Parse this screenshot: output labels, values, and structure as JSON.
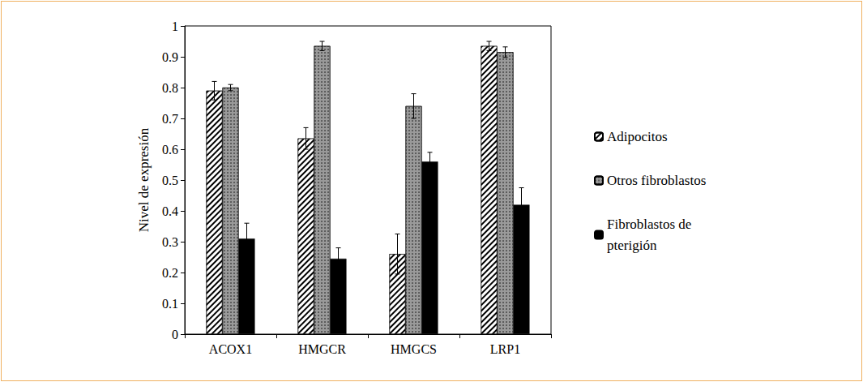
{
  "chart_data": {
    "type": "bar",
    "y_label": "Nivel de expresión",
    "categories": [
      "ACOX1",
      "HMGCR",
      "HMGCS",
      "LRP1"
    ],
    "series": [
      {
        "name": "Adipocitos",
        "color": "#ffffff",
        "values": [
          0.79,
          0.635,
          0.26,
          0.935
        ],
        "errors": [
          0.03,
          0.035,
          0.065,
          0.015
        ]
      },
      {
        "name": "Otros fibroblastos",
        "color": "#9a9a9a",
        "values": [
          0.8,
          0.935,
          0.74,
          0.915
        ],
        "errors": [
          0.01,
          0.015,
          0.04,
          0.017
        ]
      },
      {
        "name": "Fibroblastos de pterigión",
        "color": "#000000",
        "values": [
          0.31,
          0.245,
          0.56,
          0.42
        ],
        "errors": [
          0.05,
          0.035,
          0.03,
          0.055
        ]
      }
    ],
    "ylim": [
      0,
      1
    ],
    "yticks": [
      0,
      0.1,
      0.2,
      0.3,
      0.4,
      0.5,
      0.6,
      0.7,
      0.8,
      0.9,
      1
    ],
    "grid": false,
    "legend": "right"
  }
}
